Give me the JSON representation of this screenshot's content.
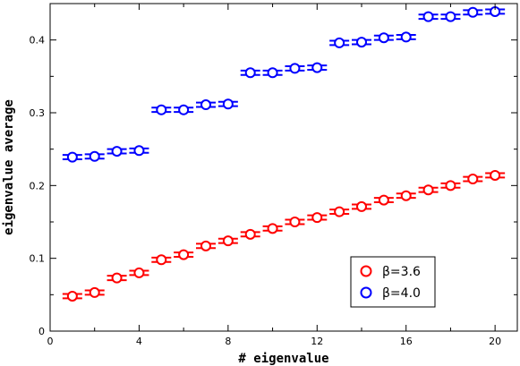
{
  "chart_data": {
    "type": "scatter",
    "xlabel": "# eigenvalue",
    "ylabel": "eigenvalue average",
    "xlim": [
      0,
      21
    ],
    "ylim": [
      0,
      0.45
    ],
    "xticks": [
      "0",
      "4",
      "8",
      "12",
      "16",
      "20"
    ],
    "yticks": [
      "0",
      "0.1",
      "0.2",
      "0.3",
      "0.4"
    ],
    "grid": false,
    "legend_position": "bottom-right",
    "error_bars": true,
    "series": [
      {
        "name": "β=3.6",
        "color": "#ff0000",
        "x": [
          1,
          2,
          3,
          4,
          5,
          6,
          7,
          8,
          9,
          10,
          11,
          12,
          13,
          14,
          15,
          16,
          17,
          18,
          19,
          20
        ],
        "y": [
          0.048,
          0.053,
          0.073,
          0.08,
          0.098,
          0.105,
          0.117,
          0.124,
          0.133,
          0.141,
          0.15,
          0.156,
          0.164,
          0.171,
          0.18,
          0.186,
          0.194,
          0.2,
          0.209,
          0.214
        ],
        "err": [
          0.003,
          0.003,
          0.003,
          0.003,
          0.003,
          0.003,
          0.003,
          0.003,
          0.003,
          0.003,
          0.003,
          0.003,
          0.003,
          0.003,
          0.003,
          0.003,
          0.003,
          0.003,
          0.003,
          0.003
        ]
      },
      {
        "name": "β=4.0",
        "color": "#0000ff",
        "x": [
          1,
          2,
          3,
          4,
          5,
          6,
          7,
          8,
          9,
          10,
          11,
          12,
          13,
          14,
          15,
          16,
          17,
          18,
          19,
          20
        ],
        "y": [
          0.239,
          0.24,
          0.247,
          0.248,
          0.304,
          0.304,
          0.311,
          0.312,
          0.355,
          0.355,
          0.361,
          0.362,
          0.396,
          0.397,
          0.403,
          0.404,
          0.432,
          0.432,
          0.438,
          0.439
        ],
        "err": [
          0.003,
          0.003,
          0.003,
          0.003,
          0.003,
          0.003,
          0.003,
          0.003,
          0.003,
          0.003,
          0.003,
          0.003,
          0.003,
          0.003,
          0.003,
          0.003,
          0.003,
          0.003,
          0.003,
          0.003
        ]
      }
    ]
  }
}
